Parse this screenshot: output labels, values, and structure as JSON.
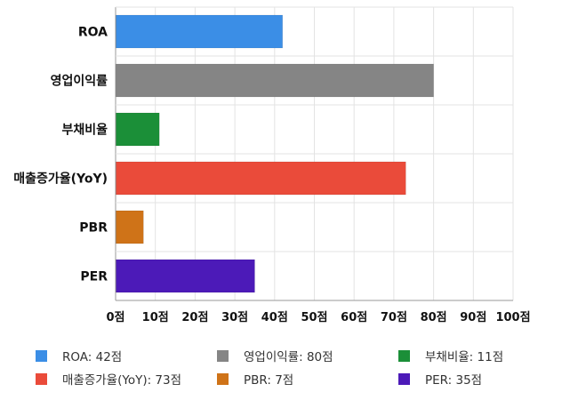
{
  "chart_data": {
    "type": "bar",
    "orientation": "horizontal",
    "categories": [
      "ROA",
      "영업이익률",
      "부채비율",
      "매출증가율(YoY)",
      "PBR",
      "PER"
    ],
    "values": [
      42,
      80,
      11,
      73,
      7,
      35
    ],
    "colors": [
      "#3b8ee6",
      "#858585",
      "#1b8f38",
      "#ea4b3a",
      "#cf7318",
      "#4c1ab8"
    ],
    "xlim": [
      0,
      100
    ],
    "xticks": [
      0,
      10,
      20,
      30,
      40,
      50,
      60,
      70,
      80,
      90,
      100
    ],
    "xtick_labels": [
      "0점",
      "10점",
      "20점",
      "30점",
      "40점",
      "50점",
      "60점",
      "70점",
      "80점",
      "90점",
      "100점"
    ],
    "grid": true,
    "legend_position": "bottom",
    "legend_labels": [
      "ROA: 42점",
      "영업이익률: 80점",
      "부채비율: 11점",
      "매출증가율(YoY): 73점",
      "PBR: 7점",
      "PER: 35점"
    ]
  }
}
